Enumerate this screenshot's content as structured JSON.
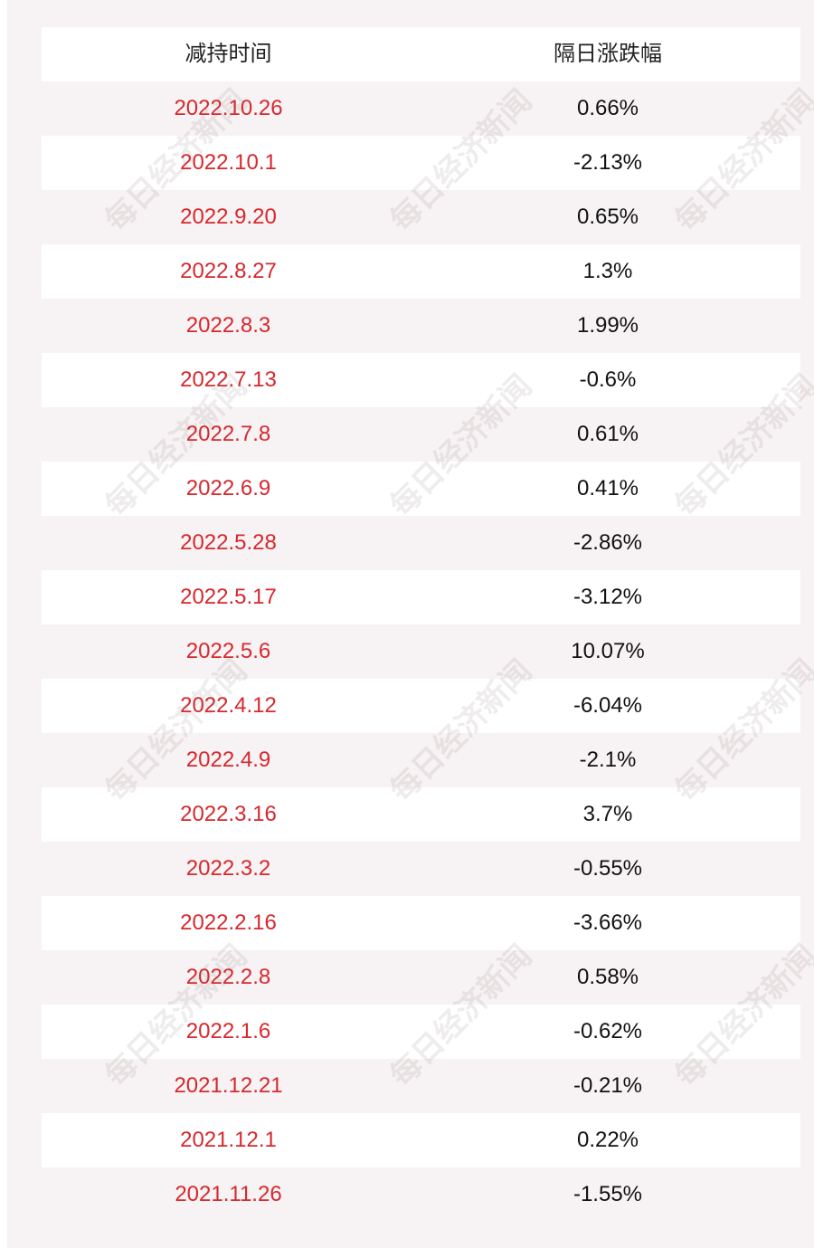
{
  "header": {
    "col_date": "减持时间",
    "col_change": "隔日涨跌幅"
  },
  "rows": [
    {
      "date": "2022.10.26",
      "change": "0.66%"
    },
    {
      "date": "2022.10.1",
      "change": "-2.13%"
    },
    {
      "date": "2022.9.20",
      "change": "0.65%"
    },
    {
      "date": "2022.8.27",
      "change": "1.3%"
    },
    {
      "date": "2022.8.3",
      "change": "1.99%"
    },
    {
      "date": "2022.7.13",
      "change": "-0.6%"
    },
    {
      "date": "2022.7.8",
      "change": "0.61%"
    },
    {
      "date": "2022.6.9",
      "change": "0.41%"
    },
    {
      "date": "2022.5.28",
      "change": "-2.86%"
    },
    {
      "date": "2022.5.17",
      "change": "-3.12%"
    },
    {
      "date": "2022.5.6",
      "change": "10.07%"
    },
    {
      "date": "2022.4.12",
      "change": "-6.04%"
    },
    {
      "date": "2022.4.9",
      "change": "-2.1%"
    },
    {
      "date": "2022.3.16",
      "change": "3.7%"
    },
    {
      "date": "2022.3.2",
      "change": "-0.55%"
    },
    {
      "date": "2022.2.16",
      "change": "-3.66%"
    },
    {
      "date": "2022.2.8",
      "change": "0.58%"
    },
    {
      "date": "2022.1.6",
      "change": "-0.62%"
    },
    {
      "date": "2021.12.21",
      "change": "-0.21%"
    },
    {
      "date": "2021.12.1",
      "change": "0.22%"
    },
    {
      "date": "2021.11.26",
      "change": "-1.55%"
    }
  ],
  "watermark": "每日经济新闻",
  "colors": {
    "date": "#d7282d",
    "change": "#111111",
    "panel": "#f7f3f4",
    "row_alt": "#ffffff"
  }
}
